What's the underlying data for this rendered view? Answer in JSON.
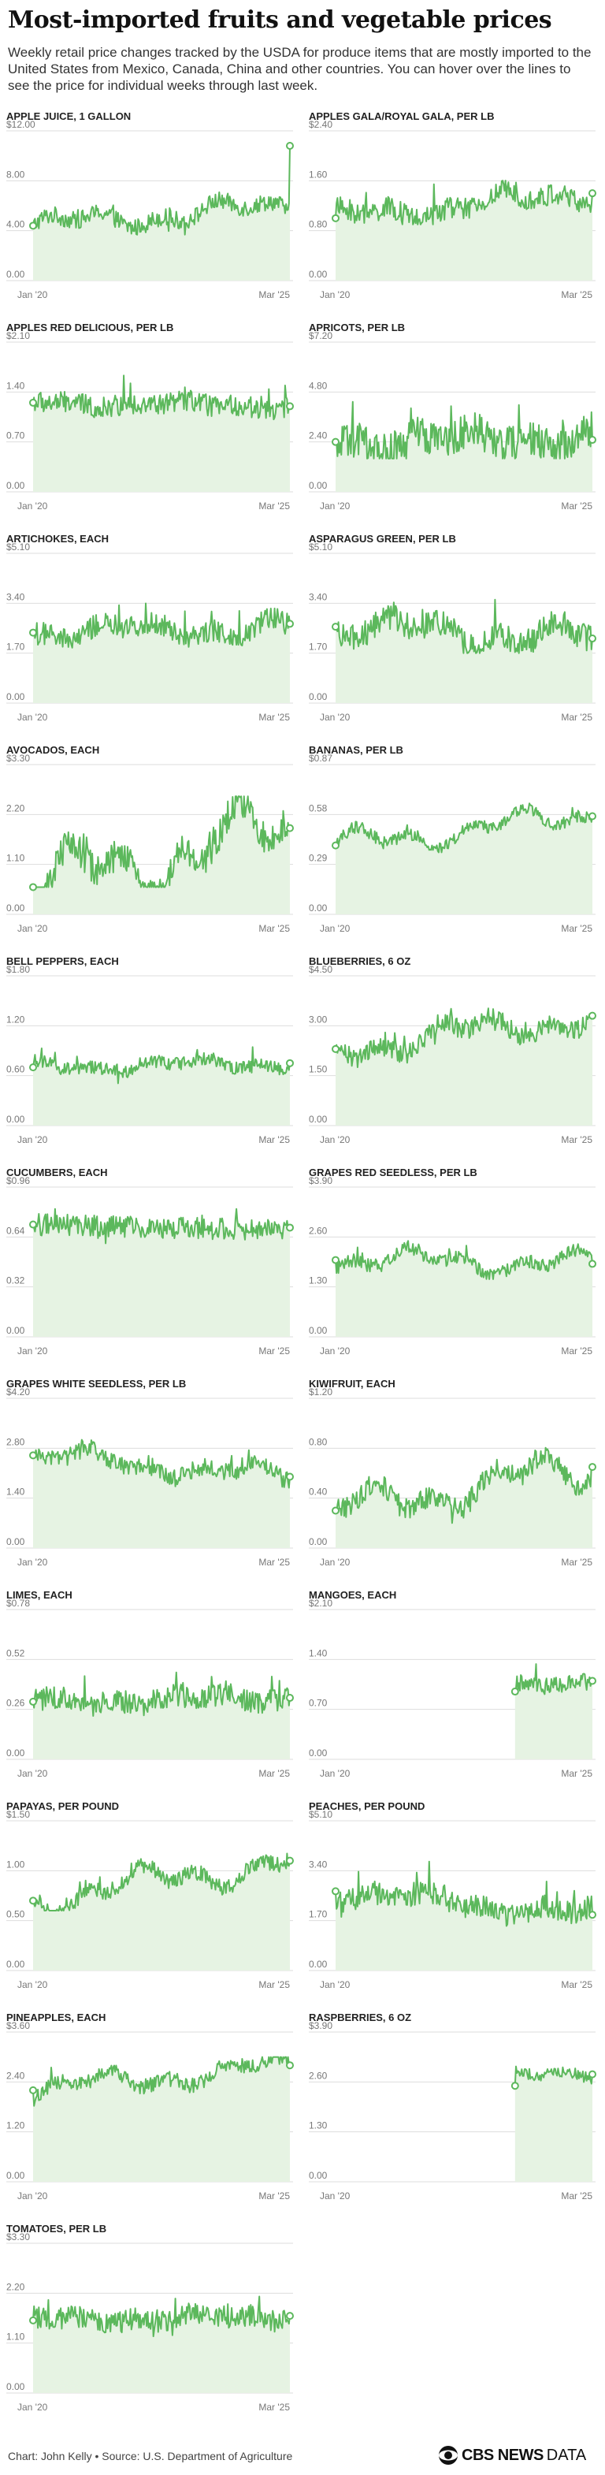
{
  "header": {
    "title": "Most-imported fruits and vegetable prices",
    "subtitle": "Weekly retail price changes tracked by the USDA for produce items that are mostly imported to the United States from Mexico, Canada, China and other countries. You can hover over the lines to see the price for individual weeks through last week."
  },
  "footer": {
    "source": "Chart: John Kelly • Source: U.S. Department of Agriculture",
    "logo_brand": "CBS NEWS",
    "logo_suffix": "DATA"
  },
  "colors": {
    "line": "#5cb85c",
    "area": "#e6f3e3",
    "grid": "#dddddd",
    "tick": "#777777"
  },
  "chart_data": [
    {
      "type": "area",
      "title": "APPLE JUICE, 1 GALLON",
      "yticks": [
        "$12.00",
        "8.00",
        "4.00",
        "0.00"
      ],
      "ylim": [
        0,
        12
      ],
      "xlabels": [
        "Jan '20",
        "Mar '25"
      ],
      "series": [
        {
          "start": 4.4,
          "end": 6.0,
          "low": 3.6,
          "high": 7.2,
          "trend": 1.6,
          "last": 10.8,
          "volatility": 0.7
        }
      ]
    },
    {
      "type": "area",
      "title": "APPLES GALA/ROYAL GALA, PER LB",
      "yticks": [
        "$2.40",
        "1.60",
        "0.80",
        "0.00"
      ],
      "ylim": [
        0,
        2.4
      ],
      "xlabels": [
        "Jan '20",
        "Mar '25"
      ],
      "series": [
        {
          "start": 1.0,
          "end": 1.4,
          "low": 0.9,
          "high": 2.1,
          "trend": 0.3,
          "last": 1.4,
          "volatility": 0.18
        }
      ]
    },
    {
      "type": "area",
      "title": "APPLES RED DELICIOUS, PER LB",
      "yticks": [
        "$2.10",
        "1.40",
        "0.70",
        "0.00"
      ],
      "ylim": [
        0,
        2.1
      ],
      "xlabels": [
        "Jan '20",
        "Mar '25"
      ],
      "series": [
        {
          "start": 1.25,
          "end": 1.2,
          "low": 0.9,
          "high": 1.8,
          "trend": 0.1,
          "last": 1.2,
          "volatility": 0.15
        }
      ]
    },
    {
      "type": "area",
      "title": "APRICOTS, PER LB",
      "yticks": [
        "$7.20",
        "4.80",
        "2.40",
        "0.00"
      ],
      "ylim": [
        0,
        7.2
      ],
      "xlabels": [
        "Jan '20",
        "Mar '25"
      ],
      "series": [
        {
          "start": 2.4,
          "end": 2.6,
          "low": 1.6,
          "high": 6.4,
          "trend": 1.0,
          "last": 2.5,
          "volatility": 0.9
        }
      ]
    },
    {
      "type": "area",
      "title": "ARTICHOKES, EACH",
      "yticks": [
        "$5.10",
        "3.40",
        "1.70",
        "0.00"
      ],
      "ylim": [
        0,
        5.1
      ],
      "xlabels": [
        "Jan '20",
        "Mar '25"
      ],
      "series": [
        {
          "start": 2.4,
          "end": 2.6,
          "low": 1.7,
          "high": 4.6,
          "trend": 0.6,
          "last": 2.7,
          "volatility": 0.4
        }
      ]
    },
    {
      "type": "area",
      "title": "ASPARAGUS GREEN, PER LB",
      "yticks": [
        "$5.10",
        "3.40",
        "1.70",
        "0.00"
      ],
      "ylim": [
        0,
        5.1
      ],
      "xlabels": [
        "Jan '20",
        "Mar '25"
      ],
      "series": [
        {
          "start": 2.6,
          "end": 2.2,
          "low": 1.7,
          "high": 4.6,
          "trend": 0.9,
          "last": 2.2,
          "volatility": 0.45
        }
      ]
    },
    {
      "type": "area",
      "title": "AVOCADOS, EACH",
      "yticks": [
        "$3.30",
        "2.20",
        "1.10",
        "0.00"
      ],
      "ylim": [
        0,
        3.3
      ],
      "xlabels": [
        "Jan '20",
        "Mar '25"
      ],
      "series": [
        {
          "start": 0.6,
          "end": 1.9,
          "low": 0.6,
          "high": 2.6,
          "trend": 1.4,
          "last": 1.9,
          "volatility": 0.35
        }
      ]
    },
    {
      "type": "area",
      "title": "BANANAS, PER LB",
      "yticks": [
        "$0.87",
        "0.58",
        "0.29",
        "0.00"
      ],
      "ylim": [
        0,
        0.87
      ],
      "xlabels": [
        "Jan '20",
        "Mar '25"
      ],
      "series": [
        {
          "start": 0.4,
          "end": 0.58,
          "low": 0.36,
          "high": 0.8,
          "trend": 0.15,
          "last": 0.57,
          "volatility": 0.035
        }
      ]
    },
    {
      "type": "area",
      "title": "BELL PEPPERS, EACH",
      "yticks": [
        "$1.80",
        "1.20",
        "0.60",
        "0.00"
      ],
      "ylim": [
        0,
        1.8
      ],
      "xlabels": [
        "Jan '20",
        "Mar '25"
      ],
      "series": [
        {
          "start": 0.7,
          "end": 0.75,
          "low": 0.4,
          "high": 1.6,
          "trend": 0.15,
          "last": 0.75,
          "volatility": 0.08
        }
      ]
    },
    {
      "type": "area",
      "title": "BLUEBERRIES, 6 OZ",
      "yticks": [
        "$4.50",
        "3.00",
        "1.50",
        "0.00"
      ],
      "ylim": [
        0,
        4.5
      ],
      "xlabels": [
        "Jan '20",
        "Mar '25"
      ],
      "series": [
        {
          "start": 2.3,
          "end": 3.3,
          "low": 1.3,
          "high": 4.0,
          "trend": 0.9,
          "last": 3.3,
          "volatility": 0.3
        }
      ]
    },
    {
      "type": "area",
      "title": "CUCUMBERS, EACH",
      "yticks": [
        "$0.96",
        "0.64",
        "0.32",
        "0.00"
      ],
      "ylim": [
        0,
        0.96
      ],
      "xlabels": [
        "Jan '20",
        "Mar '25"
      ],
      "series": [
        {
          "start": 0.72,
          "end": 0.68,
          "low": 0.45,
          "high": 0.82,
          "trend": 0.0,
          "last": 0.7,
          "volatility": 0.07
        }
      ]
    },
    {
      "type": "area",
      "title": "GRAPES RED SEEDLESS, PER LB",
      "yticks": [
        "$3.90",
        "2.60",
        "1.30",
        "0.00"
      ],
      "ylim": [
        0,
        3.9
      ],
      "xlabels": [
        "Jan '20",
        "Mar '25"
      ],
      "series": [
        {
          "start": 2.0,
          "end": 1.9,
          "low": 1.5,
          "high": 3.4,
          "trend": 0.6,
          "last": 1.9,
          "volatility": 0.18
        }
      ]
    },
    {
      "type": "area",
      "title": "GRAPES WHITE SEEDLESS, PER LB",
      "yticks": [
        "$4.20",
        "2.80",
        "1.40",
        "0.00"
      ],
      "ylim": [
        0,
        4.2
      ],
      "xlabels": [
        "Jan '20",
        "Mar '25"
      ],
      "series": [
        {
          "start": 2.6,
          "end": 2.0,
          "low": 1.4,
          "high": 4.1,
          "trend": 0.5,
          "last": 2.0,
          "volatility": 0.25
        }
      ]
    },
    {
      "type": "area",
      "title": "KIWIFRUIT, EACH",
      "yticks": [
        "$1.20",
        "0.80",
        "0.40",
        "0.00"
      ],
      "ylim": [
        0,
        1.2
      ],
      "xlabels": [
        "Jan '20",
        "Mar '25"
      ],
      "series": [
        {
          "start": 0.3,
          "end": 0.65,
          "low": 0.2,
          "high": 1.1,
          "trend": 0.3,
          "last": 0.65,
          "volatility": 0.09
        }
      ]
    },
    {
      "type": "area",
      "title": "LIMES, EACH",
      "yticks": [
        "$0.78",
        "0.52",
        "0.26",
        "0.00"
      ],
      "ylim": [
        0,
        0.78
      ],
      "xlabels": [
        "Jan '20",
        "Mar '25"
      ],
      "series": [
        {
          "start": 0.3,
          "end": 0.32,
          "low": 0.15,
          "high": 0.7,
          "trend": 0.05,
          "last": 0.32,
          "volatility": 0.06
        }
      ]
    },
    {
      "type": "area",
      "title": "MANGOES, EACH",
      "yticks": [
        "$2.10",
        "1.40",
        "0.70",
        "0.00"
      ],
      "ylim": [
        0,
        2.1
      ],
      "xlabels": [
        "Jan '20",
        "Mar '25"
      ],
      "series": [
        {
          "start": 0.95,
          "end": 1.1,
          "low": 0.9,
          "high": 1.6,
          "trend": 0.1,
          "last": 1.1,
          "volatility": 0.12,
          "from": 0.7
        }
      ]
    },
    {
      "type": "area",
      "title": "PAPAYAS, PER POUND",
      "yticks": [
        "$1.50",
        "1.00",
        "0.50",
        "0.00"
      ],
      "ylim": [
        0,
        1.5
      ],
      "xlabels": [
        "Jan '20",
        "Mar '25"
      ],
      "series": [
        {
          "start": 0.7,
          "end": 1.1,
          "low": 0.6,
          "high": 1.45,
          "trend": 0.3,
          "last": 1.1,
          "volatility": 0.08
        }
      ]
    },
    {
      "type": "area",
      "title": "PEACHES, PER POUND",
      "yticks": [
        "$5.10",
        "3.40",
        "1.70",
        "0.00"
      ],
      "ylim": [
        0,
        5.1
      ],
      "xlabels": [
        "Jan '20",
        "Mar '25"
      ],
      "series": [
        {
          "start": 2.7,
          "end": 1.9,
          "low": 1.5,
          "high": 4.4,
          "trend": 0.5,
          "last": 1.9,
          "volatility": 0.4
        }
      ]
    },
    {
      "type": "area",
      "title": "PINEAPPLES, EACH",
      "yticks": [
        "$3.60",
        "2.40",
        "1.20",
        "0.00"
      ],
      "ylim": [
        0,
        3.6
      ],
      "xlabels": [
        "Jan '20",
        "Mar '25"
      ],
      "series": [
        {
          "start": 2.2,
          "end": 2.8,
          "low": 1.6,
          "high": 3.0,
          "trend": 0.5,
          "last": 2.8,
          "volatility": 0.18
        }
      ]
    },
    {
      "type": "area",
      "title": "RASPBERRIES, 6 OZ",
      "yticks": [
        "$3.90",
        "2.60",
        "1.30",
        "0.00"
      ],
      "ylim": [
        0,
        3.9
      ],
      "xlabels": [
        "Jan '20",
        "Mar '25"
      ],
      "series": [
        {
          "start": 2.5,
          "end": 2.8,
          "low": 2.4,
          "high": 3.6,
          "trend": 0.3,
          "last": 2.8,
          "volatility": 0.15,
          "from": 0.7
        }
      ]
    },
    {
      "type": "area",
      "title": "TOMATOES, PER LB",
      "yticks": [
        "$3.30",
        "2.20",
        "1.10",
        "0.00"
      ],
      "ylim": [
        0,
        3.3
      ],
      "xlabels": [
        "Jan '20",
        "Mar '25"
      ],
      "series": [
        {
          "start": 1.6,
          "end": 1.7,
          "low": 1.0,
          "high": 2.7,
          "trend": 0.2,
          "last": 1.7,
          "volatility": 0.25
        }
      ]
    }
  ]
}
